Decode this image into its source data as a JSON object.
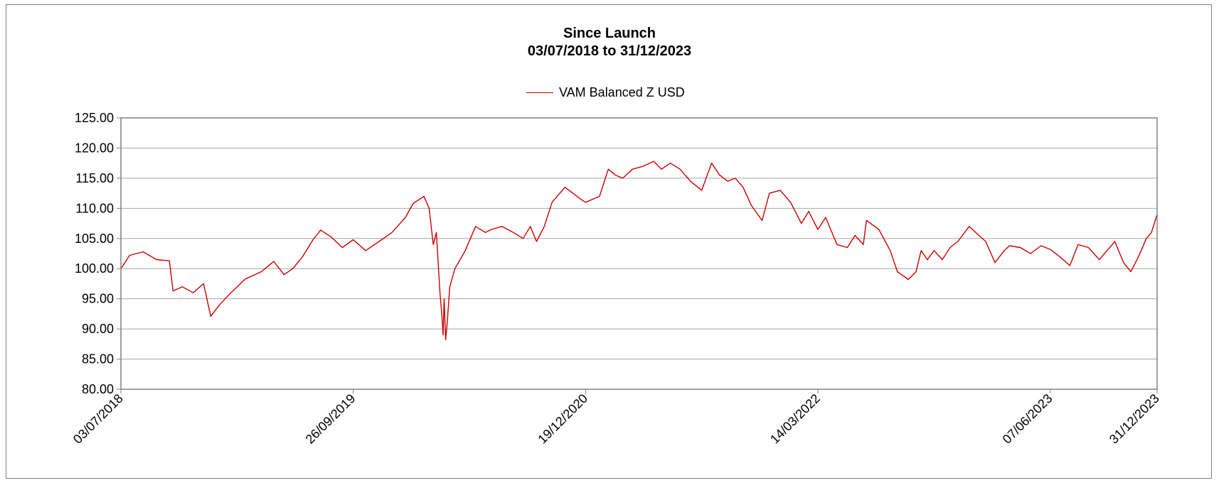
{
  "chart_data": {
    "type": "line",
    "title": "Since Launch",
    "subtitle": "03/07/2018 to 31/12/2023",
    "xlabel": "",
    "ylabel": "",
    "ylim": [
      80,
      125
    ],
    "y_ticks": [
      "80.00",
      "85.00",
      "90.00",
      "95.00",
      "100.00",
      "105.00",
      "110.00",
      "115.00",
      "120.00",
      "125.00"
    ],
    "x_ticks": [
      "03/07/2018",
      "26/09/2019",
      "19/12/2020",
      "14/03/2022",
      "07/06/2023",
      "31/12/2023"
    ],
    "grid": true,
    "legend_placement": "top-center",
    "colors": {
      "series": "#cc0000",
      "grid": "#a6a6a6",
      "axis": "#808080"
    },
    "series": [
      {
        "name": "VAM Balanced Z USD",
        "x": [
          "2018-07-03",
          "2018-07-20",
          "2018-08-15",
          "2018-09-10",
          "2018-10-05",
          "2018-10-12",
          "2018-10-30",
          "2018-11-20",
          "2018-12-10",
          "2018-12-24",
          "2019-01-10",
          "2019-02-01",
          "2019-03-01",
          "2019-04-01",
          "2019-04-25",
          "2019-05-15",
          "2019-06-01",
          "2019-06-20",
          "2019-07-10",
          "2019-07-25",
          "2019-08-15",
          "2019-09-05",
          "2019-09-26",
          "2019-10-20",
          "2019-11-15",
          "2019-12-10",
          "2020-01-05",
          "2020-01-20",
          "2020-02-10",
          "2020-02-20",
          "2020-02-28",
          "2020-03-05",
          "2020-03-12",
          "2020-03-16",
          "2020-03-18",
          "2020-03-20",
          "2020-03-23",
          "2020-03-26",
          "2020-03-31",
          "2020-04-10",
          "2020-04-30",
          "2020-05-20",
          "2020-06-08",
          "2020-06-20",
          "2020-07-10",
          "2020-08-01",
          "2020-08-20",
          "2020-09-03",
          "2020-09-15",
          "2020-09-30",
          "2020-10-15",
          "2020-10-30",
          "2020-11-09",
          "2020-11-20",
          "2020-12-10",
          "2020-12-19",
          "2021-01-15",
          "2021-02-01",
          "2021-02-15",
          "2021-03-01",
          "2021-03-20",
          "2021-04-10",
          "2021-04-30",
          "2021-05-15",
          "2021-06-01",
          "2021-06-20",
          "2021-07-10",
          "2021-08-01",
          "2021-08-20",
          "2021-09-05",
          "2021-09-20",
          "2021-10-05",
          "2021-10-20",
          "2021-11-05",
          "2021-11-26",
          "2021-12-10",
          "2021-12-31",
          "2022-01-20",
          "2022-02-10",
          "2022-02-24",
          "2022-03-14",
          "2022-03-29",
          "2022-04-20",
          "2022-05-10",
          "2022-05-25",
          "2022-06-10",
          "2022-06-16",
          "2022-07-10",
          "2022-08-01",
          "2022-08-15",
          "2022-09-05",
          "2022-09-20",
          "2022-09-30",
          "2022-10-12",
          "2022-10-25",
          "2022-11-10",
          "2022-11-25",
          "2022-12-10",
          "2023-01-01",
          "2023-01-20",
          "2023-02-02",
          "2023-02-20",
          "2023-03-10",
          "2023-03-20",
          "2023-04-10",
          "2023-04-30",
          "2023-05-20",
          "2023-06-07",
          "2023-06-25",
          "2023-07-15",
          "2023-07-31",
          "2023-08-20",
          "2023-09-10",
          "2023-09-25",
          "2023-10-10",
          "2023-10-27",
          "2023-11-10",
          "2023-11-25",
          "2023-12-10",
          "2023-12-20",
          "2023-12-31"
        ],
        "values": [
          100.0,
          102.2,
          102.8,
          101.5,
          101.3,
          96.3,
          97.0,
          96.0,
          97.5,
          92.1,
          94.0,
          96.0,
          98.3,
          99.5,
          101.2,
          99.0,
          100.0,
          102.0,
          104.8,
          106.4,
          105.2,
          103.5,
          104.8,
          103.0,
          104.5,
          106.0,
          108.5,
          110.8,
          112.0,
          110.0,
          104.0,
          106.0,
          96.0,
          92.0,
          89.0,
          95.0,
          88.2,
          91.0,
          97.0,
          100.0,
          103.0,
          107.0,
          106.0,
          106.5,
          107.0,
          106.0,
          105.0,
          107.0,
          104.5,
          107.0,
          111.0,
          112.5,
          113.5,
          112.8,
          111.5,
          111.0,
          112.0,
          116.5,
          115.5,
          115.0,
          116.5,
          117.0,
          117.8,
          116.5,
          117.5,
          116.5,
          114.5,
          113.0,
          117.5,
          115.5,
          114.5,
          115.0,
          113.5,
          110.5,
          108.0,
          112.5,
          113.0,
          111.0,
          107.5,
          109.5,
          106.5,
          108.5,
          104.0,
          103.5,
          105.5,
          104.0,
          108.0,
          106.5,
          103.0,
          99.5,
          98.2,
          99.5,
          103.0,
          101.5,
          103.0,
          101.5,
          103.5,
          104.5,
          107.0,
          105.5,
          104.5,
          101.0,
          103.0,
          103.8,
          103.5,
          102.5,
          103.8,
          103.2,
          102.0,
          100.5,
          104.0,
          103.5,
          101.5,
          103.0,
          104.5,
          101.0,
          99.5,
          102.0,
          105.0,
          106.0,
          109.0
        ]
      }
    ]
  }
}
